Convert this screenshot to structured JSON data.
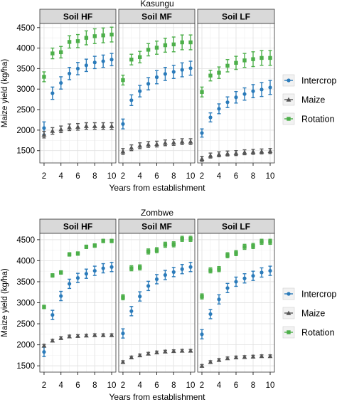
{
  "legend": {
    "entries": [
      {
        "label": "Intercrop",
        "color": "#2b7bba",
        "marker": "circle"
      },
      {
        "label": "Maize",
        "color": "#555555",
        "marker": "triangle"
      },
      {
        "label": "Rotation",
        "color": "#4daf4a",
        "marker": "square"
      }
    ]
  },
  "chart_data": [
    {
      "type": "scatter",
      "title": "Kasungu",
      "xlabel": "Years from establishment",
      "ylabel": "Maize yield (kg/ha)",
      "xlim": [
        1.5,
        10.5
      ],
      "ylim": [
        1200,
        4600
      ],
      "xticks": [
        2,
        4,
        6,
        8,
        10
      ],
      "yticks": [
        1500,
        2000,
        2500,
        3000,
        3500,
        4000,
        4500
      ],
      "grid": true,
      "legend_position": "right",
      "error_bars": true,
      "panels": [
        {
          "facet": "Soil HF",
          "x": [
            2,
            3,
            4,
            5,
            6,
            7,
            8,
            9,
            10
          ],
          "series": [
            {
              "name": "Intercrop",
              "values": [
                2050,
                2900,
                3150,
                3380,
                3500,
                3580,
                3650,
                3680,
                3720
              ],
              "errors": [
                150,
                150,
                150,
                150,
                150,
                150,
                150,
                150,
                150
              ]
            },
            {
              "name": "Maize",
              "values": [
                1890,
                1980,
                2020,
                2070,
                2080,
                2100,
                2100,
                2100,
                2100
              ],
              "errors": [
                80,
                80,
                80,
                80,
                80,
                80,
                80,
                80,
                80
              ]
            },
            {
              "name": "Rotation",
              "values": [
                3300,
                3870,
                3900,
                4150,
                4170,
                4250,
                4290,
                4310,
                4330
              ],
              "errors": [
                120,
                130,
                140,
                150,
                160,
                170,
                180,
                180,
                180
              ]
            }
          ]
        },
        {
          "facet": "Soil MF",
          "x": [
            2,
            3,
            4,
            5,
            6,
            7,
            8,
            9,
            10
          ],
          "series": [
            {
              "name": "Intercrop",
              "values": [
                2150,
                2730,
                2950,
                3130,
                3290,
                3370,
                3420,
                3470,
                3510
              ],
              "errors": [
                120,
                130,
                140,
                150,
                160,
                160,
                160,
                170,
                170
              ]
            },
            {
              "name": "Maize",
              "values": [
                1480,
                1570,
                1620,
                1650,
                1660,
                1690,
                1700,
                1720,
                1720
              ],
              "errors": [
                70,
                70,
                70,
                70,
                70,
                70,
                70,
                70,
                70
              ]
            },
            {
              "name": "Rotation",
              "values": [
                3220,
                3720,
                3780,
                3960,
                4010,
                4070,
                4090,
                4140,
                4140
              ],
              "errors": [
                120,
                130,
                140,
                150,
                160,
                170,
                180,
                180,
                180
              ]
            }
          ]
        },
        {
          "facet": "Soil LF",
          "x": [
            2,
            3,
            4,
            5,
            6,
            7,
            8,
            9,
            10
          ],
          "series": [
            {
              "name": "Intercrop",
              "values": [
                1930,
                2310,
                2520,
                2680,
                2800,
                2880,
                2950,
                2990,
                3040
              ],
              "errors": [
                100,
                110,
                120,
                130,
                140,
                150,
                160,
                170,
                170
              ]
            },
            {
              "name": "Maize",
              "values": [
                1300,
                1380,
                1410,
                1430,
                1440,
                1460,
                1470,
                1480,
                1490
              ],
              "errors": [
                60,
                60,
                60,
                60,
                60,
                60,
                60,
                60,
                60
              ]
            },
            {
              "name": "Rotation",
              "values": [
                2930,
                3330,
                3400,
                3570,
                3640,
                3700,
                3730,
                3760,
                3760
              ],
              "errors": [
                120,
                130,
                140,
                150,
                160,
                170,
                180,
                180,
                180
              ]
            }
          ]
        }
      ]
    },
    {
      "type": "scatter",
      "title": "Zombwe",
      "xlabel": "Years from establishment",
      "ylabel": "Maize yield (kg/ha)",
      "xlim": [
        1.5,
        10.5
      ],
      "ylim": [
        1350,
        4650
      ],
      "xticks": [
        2,
        4,
        6,
        8,
        10
      ],
      "yticks": [
        1500,
        2000,
        2500,
        3000,
        3500,
        4000,
        4500
      ],
      "grid": true,
      "legend_position": "right",
      "error_bars": true,
      "panels": [
        {
          "facet": "Soil HF",
          "x": [
            2,
            3,
            4,
            5,
            6,
            7,
            8,
            9,
            10
          ],
          "series": [
            {
              "name": "Intercrop",
              "values": [
                1830,
                2710,
                3160,
                3450,
                3590,
                3690,
                3760,
                3820,
                3850
              ],
              "errors": [
                110,
                110,
                110,
                110,
                110,
                110,
                110,
                110,
                110
              ]
            },
            {
              "name": "Maize",
              "values": [
                1980,
                2100,
                2160,
                2200,
                2210,
                2220,
                2230,
                2230,
                2230
              ],
              "errors": [
                30,
                30,
                30,
                30,
                30,
                30,
                30,
                30,
                30
              ]
            },
            {
              "name": "Rotation",
              "values": [
                2900,
                3650,
                3720,
                4150,
                4170,
                4330,
                4360,
                4470,
                4470
              ],
              "errors": [
                40,
                40,
                40,
                40,
                40,
                40,
                40,
                40,
                40
              ]
            }
          ]
        },
        {
          "facet": "Soil MF",
          "x": [
            2,
            3,
            4,
            5,
            6,
            7,
            8,
            9,
            10
          ],
          "series": [
            {
              "name": "Intercrop",
              "values": [
                2270,
                2800,
                3150,
                3400,
                3560,
                3660,
                3730,
                3800,
                3850
              ],
              "errors": [
                110,
                110,
                110,
                110,
                110,
                110,
                110,
                110,
                110
              ]
            },
            {
              "name": "Maize",
              "values": [
                1590,
                1700,
                1750,
                1790,
                1820,
                1840,
                1850,
                1860,
                1860
              ],
              "errors": [
                30,
                30,
                30,
                30,
                30,
                30,
                30,
                30,
                30
              ]
            },
            {
              "name": "Rotation",
              "values": [
                3130,
                3820,
                3840,
                4220,
                4250,
                4380,
                4390,
                4520,
                4520
              ],
              "errors": [
                60,
                60,
                60,
                60,
                60,
                60,
                60,
                60,
                60
              ]
            }
          ]
        },
        {
          "facet": "Soil LF",
          "x": [
            2,
            3,
            4,
            5,
            6,
            7,
            8,
            9,
            10
          ],
          "series": [
            {
              "name": "Intercrop",
              "values": [
                2250,
                2730,
                3080,
                3350,
                3500,
                3580,
                3640,
                3720,
                3760
              ],
              "errors": [
                110,
                110,
                110,
                110,
                110,
                110,
                110,
                110,
                110
              ]
            },
            {
              "name": "Maize",
              "values": [
                1500,
                1590,
                1640,
                1680,
                1700,
                1710,
                1720,
                1730,
                1730
              ],
              "errors": [
                30,
                30,
                30,
                30,
                30,
                30,
                30,
                30,
                30
              ]
            },
            {
              "name": "Rotation",
              "values": [
                3150,
                3770,
                3800,
                4130,
                4180,
                4330,
                4350,
                4450,
                4450
              ],
              "errors": [
                60,
                60,
                60,
                60,
                60,
                60,
                60,
                60,
                60
              ]
            }
          ]
        }
      ]
    }
  ]
}
